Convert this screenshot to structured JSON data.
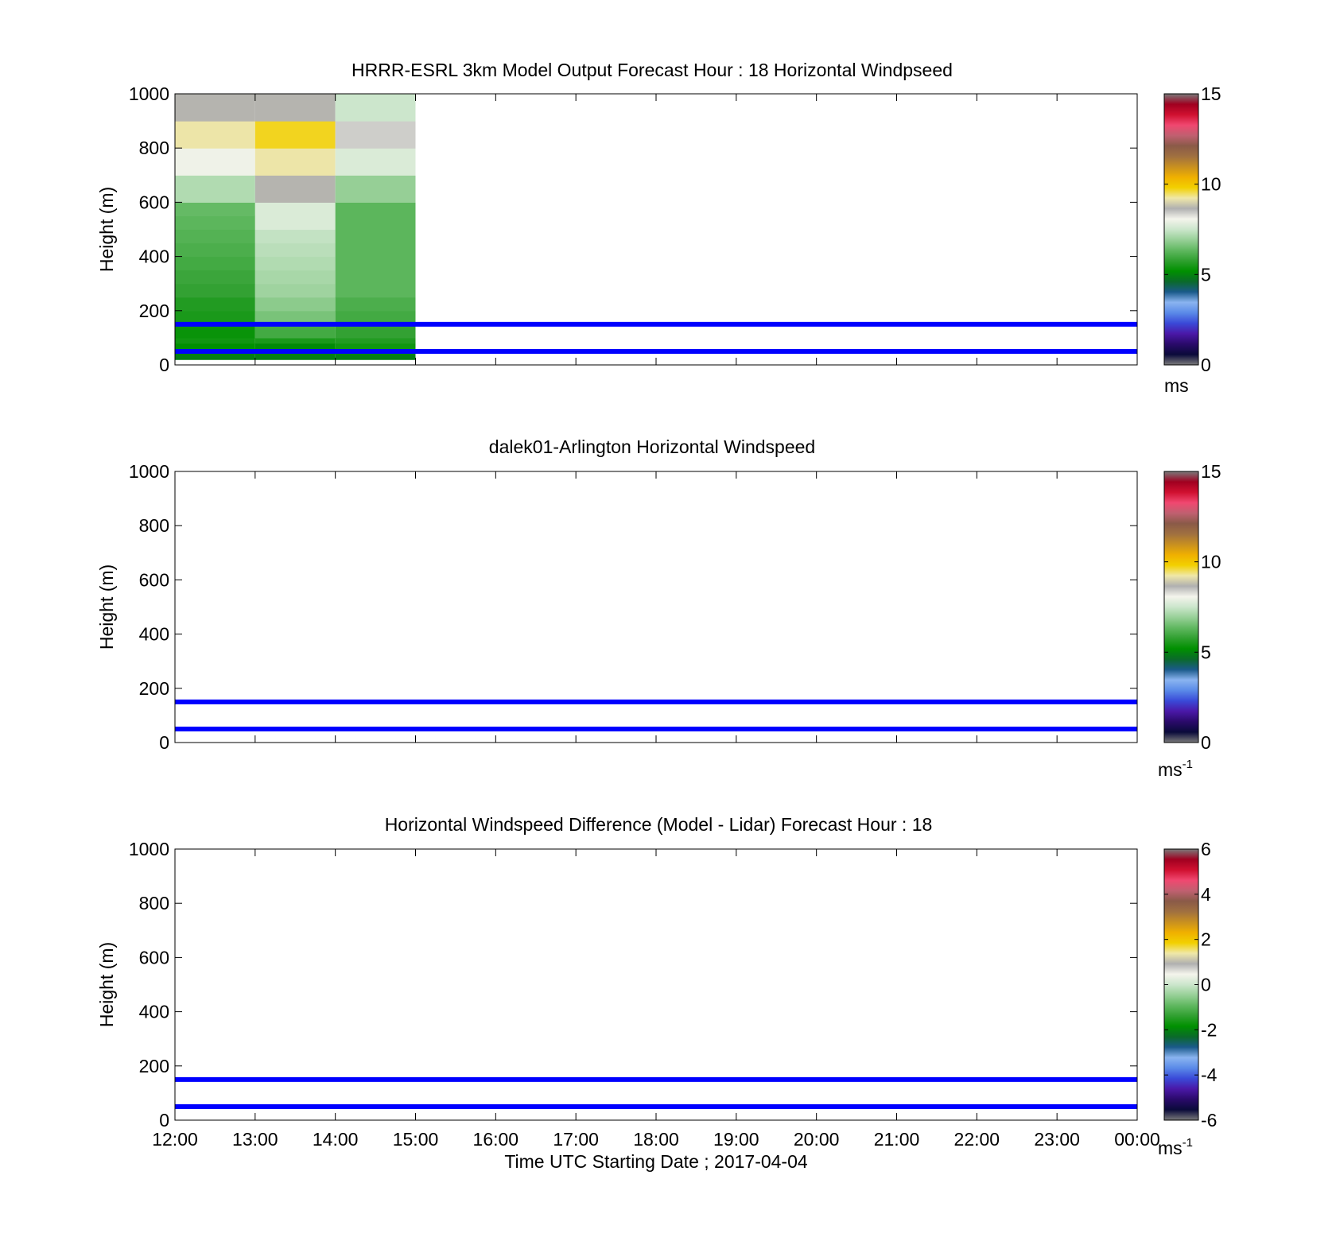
{
  "chart_data": [
    {
      "type": "heatmap",
      "title": "HRRR-ESRL 3km Model Output   Forecast Hour : 18 Horizontal Windpseed",
      "ylabel": "Height (m)",
      "xlabel": "",
      "ylim": [
        0,
        1000
      ],
      "yticks": [
        "0",
        "200",
        "400",
        "600",
        "800",
        "1000"
      ],
      "x_ticks": [
        "12:00",
        "13:00",
        "14:00",
        "15:00",
        "16:00",
        "17:00",
        "18:00",
        "19:00",
        "20:00",
        "21:00",
        "22:00",
        "23:00",
        "00:00"
      ],
      "x_tick_labels_shown": false,
      "grid": false,
      "colorbar": {
        "range": [
          0,
          15
        ],
        "ticks": [
          "0",
          "5",
          "10",
          "15"
        ],
        "unit": "ms",
        "unit_superscript": ""
      },
      "reference_lines_m": [
        50,
        150
      ],
      "reference_line_color": "#0000ff",
      "columns": [
        {
          "x_start": "12:00",
          "x_end": "13:00",
          "cells": [
            {
              "y0": 20,
              "y1": 40,
              "value": 4.9
            },
            {
              "y0": 40,
              "y1": 60,
              "value": 5.0
            },
            {
              "y0": 60,
              "y1": 80,
              "value": 5.2
            },
            {
              "y0": 80,
              "y1": 100,
              "value": 5.4
            },
            {
              "y0": 100,
              "y1": 150,
              "value": 5.3
            },
            {
              "y0": 150,
              "y1": 200,
              "value": 5.5
            },
            {
              "y0": 200,
              "y1": 250,
              "value": 5.6
            },
            {
              "y0": 250,
              "y1": 300,
              "value": 5.8
            },
            {
              "y0": 300,
              "y1": 350,
              "value": 5.9
            },
            {
              "y0": 350,
              "y1": 400,
              "value": 6.0
            },
            {
              "y0": 400,
              "y1": 450,
              "value": 6.1
            },
            {
              "y0": 450,
              "y1": 500,
              "value": 6.2
            },
            {
              "y0": 500,
              "y1": 550,
              "value": 6.3
            },
            {
              "y0": 550,
              "y1": 600,
              "value": 6.4
            },
            {
              "y0": 600,
              "y1": 700,
              "value": 7.2
            },
            {
              "y0": 700,
              "y1": 800,
              "value": 8.0
            },
            {
              "y0": 800,
              "y1": 900,
              "value": 9.2
            },
            {
              "y0": 900,
              "y1": 1000,
              "value": 8.7
            }
          ]
        },
        {
          "x_start": "13:00",
          "x_end": "14:00",
          "cells": [
            {
              "y0": 20,
              "y1": 40,
              "value": 4.9
            },
            {
              "y0": 40,
              "y1": 60,
              "value": 5.0
            },
            {
              "y0": 60,
              "y1": 80,
              "value": 5.1
            },
            {
              "y0": 80,
              "y1": 100,
              "value": 5.5
            },
            {
              "y0": 100,
              "y1": 150,
              "value": 6.0
            },
            {
              "y0": 150,
              "y1": 200,
              "value": 6.6
            },
            {
              "y0": 200,
              "y1": 250,
              "value": 6.8
            },
            {
              "y0": 250,
              "y1": 300,
              "value": 7.0
            },
            {
              "y0": 300,
              "y1": 350,
              "value": 7.1
            },
            {
              "y0": 350,
              "y1": 400,
              "value": 7.2
            },
            {
              "y0": 400,
              "y1": 450,
              "value": 7.3
            },
            {
              "y0": 450,
              "y1": 500,
              "value": 7.4
            },
            {
              "y0": 500,
              "y1": 600,
              "value": 7.7
            },
            {
              "y0": 600,
              "y1": 700,
              "value": 8.7
            },
            {
              "y0": 700,
              "y1": 800,
              "value": 9.2
            },
            {
              "y0": 800,
              "y1": 900,
              "value": 9.7
            },
            {
              "y0": 900,
              "y1": 1000,
              "value": 8.7
            }
          ]
        },
        {
          "x_start": "14:00",
          "x_end": "15:00",
          "cells": [
            {
              "y0": 20,
              "y1": 40,
              "value": 4.9
            },
            {
              "y0": 40,
              "y1": 60,
              "value": 5.1
            },
            {
              "y0": 60,
              "y1": 80,
              "value": 5.4
            },
            {
              "y0": 80,
              "y1": 100,
              "value": 5.6
            },
            {
              "y0": 100,
              "y1": 150,
              "value": 5.8
            },
            {
              "y0": 150,
              "y1": 200,
              "value": 6.0
            },
            {
              "y0": 200,
              "y1": 250,
              "value": 6.1
            },
            {
              "y0": 250,
              "y1": 600,
              "value": 6.3
            },
            {
              "y0": 600,
              "y1": 700,
              "value": 6.9
            },
            {
              "y0": 700,
              "y1": 800,
              "value": 7.7
            },
            {
              "y0": 800,
              "y1": 900,
              "value": 8.4
            },
            {
              "y0": 900,
              "y1": 1000,
              "value": 7.5
            }
          ]
        }
      ]
    },
    {
      "type": "heatmap",
      "title": "dalek01-Arlington  Horizontal Windspeed",
      "ylabel": "Height (m)",
      "xlabel": "",
      "ylim": [
        0,
        1000
      ],
      "yticks": [
        "0",
        "200",
        "400",
        "600",
        "800",
        "1000"
      ],
      "x_ticks": [
        "12:00",
        "13:00",
        "14:00",
        "15:00",
        "16:00",
        "17:00",
        "18:00",
        "19:00",
        "20:00",
        "21:00",
        "22:00",
        "23:00",
        "00:00"
      ],
      "x_tick_labels_shown": false,
      "grid": false,
      "colorbar": {
        "range": [
          0,
          15
        ],
        "ticks": [
          "0",
          "5",
          "10",
          "15"
        ],
        "unit": "ms",
        "unit_superscript": "-1"
      },
      "reference_lines_m": [
        50,
        150
      ],
      "reference_line_color": "#0000ff",
      "columns": []
    },
    {
      "type": "heatmap",
      "title": "Horizontal Windspeed Difference (Model - Lidar) Forecast Hour : 18",
      "ylabel": "Height (m)",
      "xlabel": "Time UTC  Starting Date ; 2017-04-04",
      "ylim": [
        0,
        1000
      ],
      "yticks": [
        "0",
        "200",
        "400",
        "600",
        "800",
        "1000"
      ],
      "x_ticks": [
        "12:00",
        "13:00",
        "14:00",
        "15:00",
        "16:00",
        "17:00",
        "18:00",
        "19:00",
        "20:00",
        "21:00",
        "22:00",
        "23:00",
        "00:00"
      ],
      "x_tick_labels_shown": true,
      "grid": false,
      "colorbar": {
        "range": [
          -6,
          6
        ],
        "ticks": [
          "-6",
          "-4",
          "-2",
          "0",
          "2",
          "4",
          "6"
        ],
        "unit": "ms",
        "unit_superscript": "-1"
      },
      "reference_lines_m": [
        50,
        150
      ],
      "reference_line_color": "#0000ff",
      "columns": []
    }
  ],
  "colormap_stops": [
    "#7a7a7a",
    "#0a0a3a",
    "#2a0a6a",
    "#4a18a8",
    "#3a4ad8",
    "#5a8ae8",
    "#8ab4f0",
    "#1a5a8a",
    "#0a6a2a",
    "#009000",
    "#30a030",
    "#60b860",
    "#98d098",
    "#cce6cc",
    "#f4f4ec",
    "#b0b0b0",
    "#f0e8a8",
    "#f2d000",
    "#f0b000",
    "#c89020",
    "#a07040",
    "#8a5a48",
    "#c06070",
    "#f04870",
    "#d01030",
    "#a00020",
    "#7a7a7a"
  ]
}
